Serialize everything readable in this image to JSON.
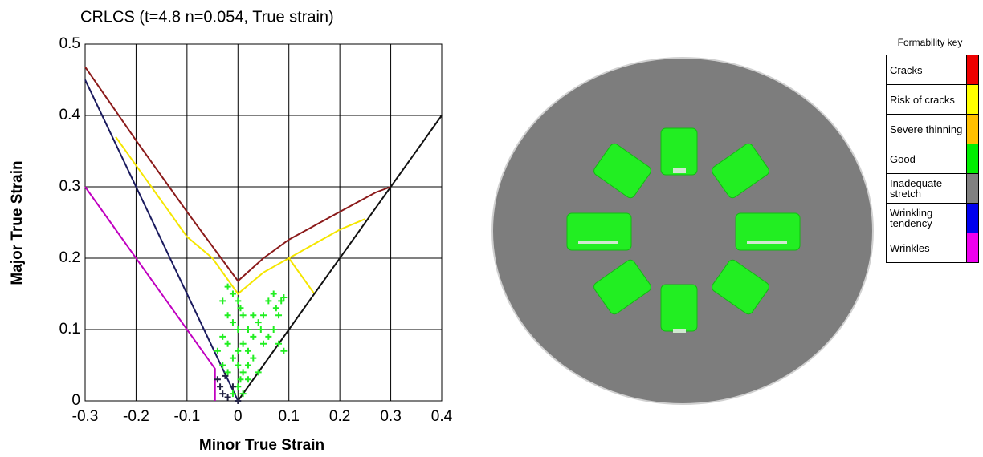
{
  "chart_data": {
    "type": "scatter",
    "title": "CRLCS (t=4.8 n=0.054, True strain)",
    "x_label": "Minor True Strain",
    "y_label": "Major True Strain",
    "xlim": [
      -0.3,
      0.4
    ],
    "ylim": [
      0,
      0.5
    ],
    "xticks": [
      -0.3,
      -0.2,
      -0.1,
      0,
      0.1,
      0.2,
      0.3,
      0.4
    ],
    "yticks": [
      0,
      0.1,
      0.2,
      0.3,
      0.4,
      0.5
    ],
    "grid": true,
    "lines": [
      {
        "color": "#8b1a1a",
        "x": [
          -0.3,
          -0.2,
          -0.1,
          0,
          0.05,
          0.1,
          0.2,
          0.27,
          0.3
        ],
        "values": [
          0.468,
          0.365,
          0.265,
          0.168,
          0.2,
          0.226,
          0.265,
          0.292,
          0.3
        ]
      },
      {
        "color": "#f5e600",
        "x": [
          -0.24,
          -0.2,
          -0.1,
          -0.05,
          0,
          0.05,
          0.1,
          0.2,
          0.25
        ],
        "values": [
          0.37,
          0.33,
          0.23,
          0.2,
          0.15,
          0.18,
          0.2,
          0.24,
          0.255
        ]
      },
      {
        "color": "#f5e600",
        "x": [
          0.1,
          0.15
        ],
        "values": [
          0.2,
          0.15
        ]
      },
      {
        "color": "#1a1a5e",
        "x": [
          -0.3,
          0
        ],
        "values": [
          0.45,
          0
        ]
      },
      {
        "color": "#111111",
        "x": [
          0,
          0.4
        ],
        "values": [
          0,
          0.4
        ]
      },
      {
        "color": "#c000c0",
        "x": [
          -0.3,
          -0.045,
          -0.045
        ],
        "values": [
          0.3,
          0.045,
          0
        ]
      }
    ],
    "series": [
      {
        "color": "#22ee22",
        "x": [
          0.06,
          0.07,
          0.075,
          0.08,
          0.085,
          0.09,
          0.05,
          0.045,
          0.04,
          0.03,
          0.02,
          0.01,
          0.005,
          0,
          -0.01,
          -0.02,
          -0.03,
          -0.02,
          -0.01,
          0,
          0.01,
          0.02,
          0.03,
          0.05,
          0.06,
          0.07,
          0.08,
          0.09,
          -0.03,
          -0.04,
          -0.03,
          -0.02,
          0,
          0.01,
          0.02,
          0,
          -0.01,
          0.01,
          0.02,
          0.04,
          -0.02,
          0,
          0.03,
          -0.01,
          0.005
        ],
        "values": [
          0.14,
          0.15,
          0.13,
          0.12,
          0.14,
          0.145,
          0.12,
          0.1,
          0.11,
          0.09,
          0.1,
          0.12,
          0.13,
          0.14,
          0.15,
          0.16,
          0.14,
          0.12,
          0.11,
          0.1,
          0.08,
          0.07,
          0.06,
          0.08,
          0.09,
          0.1,
          0.08,
          0.07,
          0.09,
          0.07,
          0.05,
          0.04,
          0.05,
          0.04,
          0.03,
          0.02,
          0.01,
          0.01,
          0.05,
          0.04,
          0.08,
          0.07,
          0.12,
          0.06,
          0.03
        ]
      },
      {
        "color": "#222244",
        "x": [
          -0.04,
          -0.035,
          -0.03,
          -0.02,
          0,
          -0.01,
          -0.025
        ],
        "values": [
          0.03,
          0.02,
          0.01,
          0.005,
          0,
          0.02,
          0.035
        ]
      }
    ],
    "legend": {
      "title": "Formability key",
      "items": [
        {
          "label": "Cracks",
          "color": "#ee0000"
        },
        {
          "label": "Risk of cracks",
          "color": "#ffff00"
        },
        {
          "label": "Severe thinning",
          "color": "#ffc000"
        },
        {
          "label": "Good",
          "color": "#00ee00"
        },
        {
          "label": "Inadequate stretch",
          "color": "#808080"
        },
        {
          "label": "Wrinkling tendency",
          "color": "#0000ee"
        },
        {
          "label": "Wrinkles",
          "color": "#ee00ee"
        }
      ]
    }
  }
}
